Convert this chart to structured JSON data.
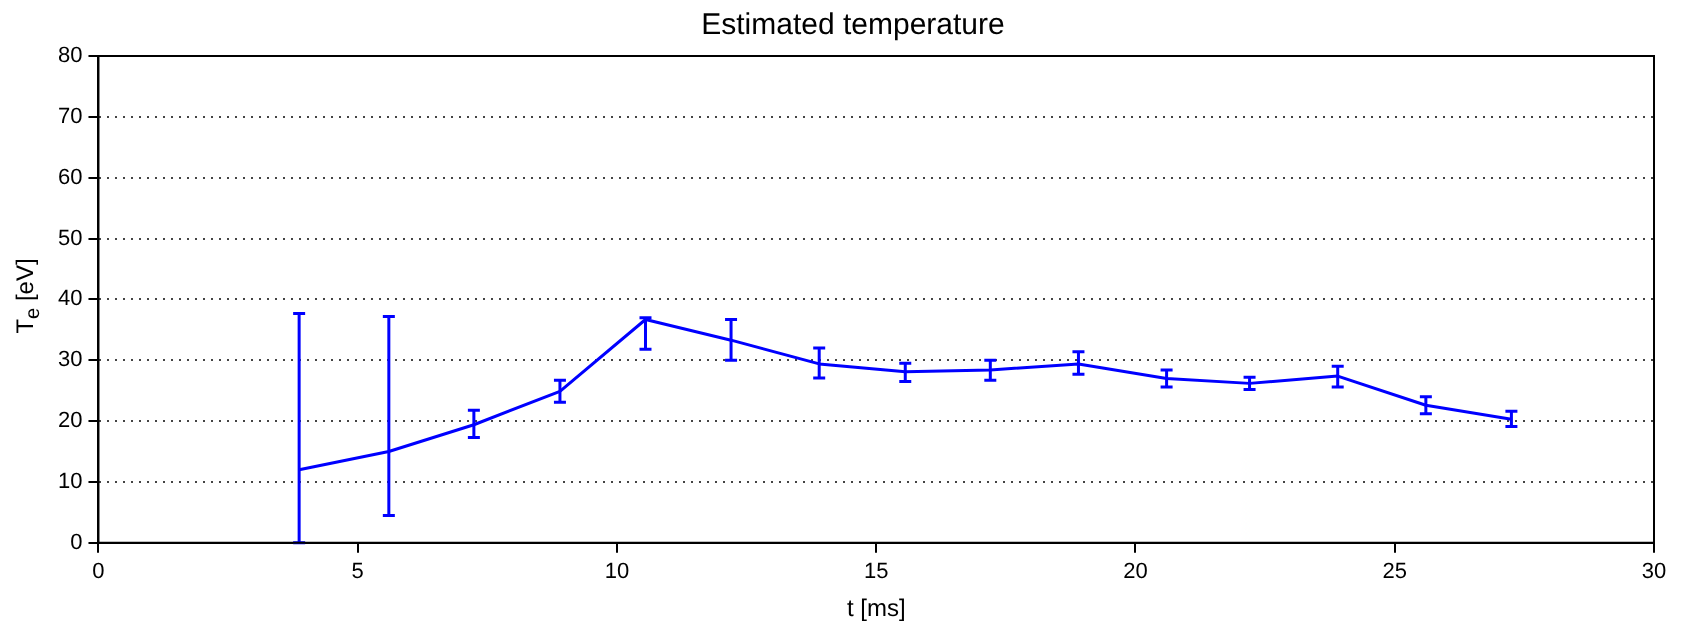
{
  "chart_data": {
    "type": "line",
    "title": "Estimated temperature",
    "xlabel": "t [ms]",
    "ylabel": "T$_{e}$ [eV]",
    "x": [
      3.87,
      5.6,
      7.24,
      8.9,
      10.55,
      12.2,
      13.9,
      15.56,
      17.2,
      18.9,
      20.6,
      22.2,
      23.9,
      25.6,
      27.25
    ],
    "series": [
      {
        "color": "#0000ff",
        "values": [
          12,
          15,
          19.4,
          24.9,
          36.7,
          33.3,
          29.4,
          28.1,
          28.4,
          29.4,
          27,
          26.2,
          27.4,
          22.6,
          20.3
        ],
        "errors": [
          [
            0,
            37.7
          ],
          [
            4.5,
            37.2
          ],
          [
            17.3,
            21.8
          ],
          [
            23.1,
            26.7
          ],
          [
            31.8,
            37
          ],
          [
            30,
            36.7
          ],
          [
            27.1,
            32
          ],
          [
            26.5,
            29.5
          ],
          [
            26.7,
            30
          ],
          [
            27.7,
            31.4
          ],
          [
            25.6,
            28.4
          ],
          [
            25.2,
            27.2
          ],
          [
            25.6,
            29
          ],
          [
            21.2,
            24
          ],
          [
            19.1,
            21.6
          ]
        ]
      }
    ],
    "xlim": [
      0,
      30
    ],
    "xticks": [
      0,
      5,
      10,
      15,
      20,
      25,
      30
    ],
    "ylim": [
      0,
      80
    ],
    "yticks": [
      0,
      10,
      20,
      30,
      40,
      50,
      60,
      70,
      80
    ],
    "grid": "y",
    "legend": false,
    "marker": "none",
    "line_style": "solid"
  }
}
